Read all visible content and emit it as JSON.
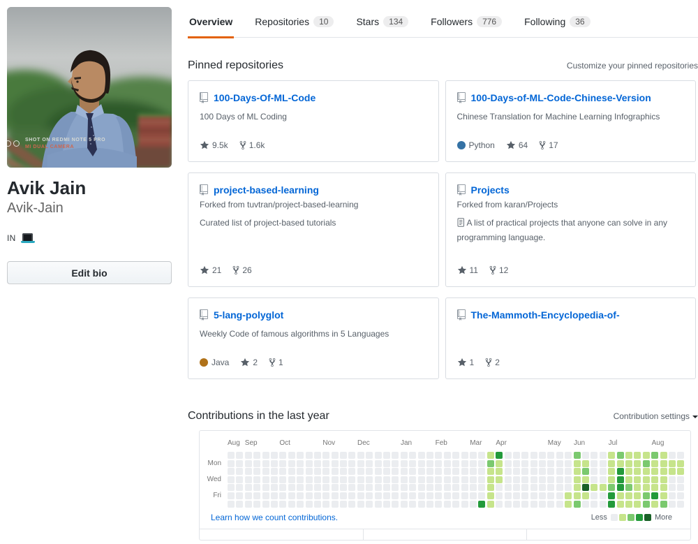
{
  "profile": {
    "name": "Avik Jain",
    "username": "Avik-Jain",
    "bio_text": "IN",
    "bio_icon": "laptop-icon",
    "edit_bio_label": "Edit bio",
    "avatar_watermark_line1": "SHOT ON REDMI NOTE 5 PRO",
    "avatar_watermark_line2": "MI DUAL CAMERA"
  },
  "tabs": [
    {
      "label": "Overview",
      "count": null,
      "active": true
    },
    {
      "label": "Repositories",
      "count": "10",
      "active": false
    },
    {
      "label": "Stars",
      "count": "134",
      "active": false
    },
    {
      "label": "Followers",
      "count": "776",
      "active": false
    },
    {
      "label": "Following",
      "count": "36",
      "active": false
    }
  ],
  "pinned": {
    "title": "Pinned repositories",
    "customize_label": "Customize your pinned repositories",
    "cards": [
      {
        "name": "100-Days-Of-ML-Code",
        "desc": "100 Days of ML Coding",
        "stars": "9.5k",
        "forks": "1.6k"
      },
      {
        "name": "100-Days-of-ML-Code-Chinese-Version",
        "desc": "Chinese Translation for Machine Learning Infographics",
        "language": "Python",
        "language_color": "#3572A5",
        "stars": "64",
        "forks": "17"
      },
      {
        "name": "project-based-learning",
        "forked_from": "Forked from tuvtran/project-based-learning",
        "desc": "Curated list of project-based tutorials",
        "stars": "21",
        "forks": "26"
      },
      {
        "name": "Projects",
        "forked_from": "Forked from karan/Projects",
        "desc": "A list of practical projects that anyone can solve in any programming language.",
        "desc_icon": "page-icon",
        "stars": "11",
        "forks": "12"
      },
      {
        "name": "5-lang-polyglot",
        "desc": "Weekly Code of famous algorithms in 5 Languages",
        "language": "Java",
        "language_color": "#b07219",
        "stars": "2",
        "forks": "1"
      },
      {
        "name": "The-Mammoth-Encyclopedia-of-",
        "stars": "1",
        "forks": "2"
      }
    ]
  },
  "contributions": {
    "title": "Contributions in the last year",
    "settings_label": "Contribution settings",
    "learn_link": "Learn how we count contributions.",
    "legend": {
      "less": "Less",
      "more": "More"
    },
    "chart_data": {
      "type": "heatmap",
      "description": "GitHub contribution calendar, 53 weeks x 7 days (rows Sun-Sat), levels 0-4",
      "palette": [
        "#ebedf0",
        "#c6e48b",
        "#7bc96f",
        "#239a3b",
        "#196127"
      ],
      "day_labels": [
        {
          "label": "Mon",
          "row": 1
        },
        {
          "label": "Wed",
          "row": 3
        },
        {
          "label": "Fri",
          "row": 5
        }
      ],
      "months": [
        {
          "label": "Aug",
          "col": 0
        },
        {
          "label": "Sep",
          "col": 2
        },
        {
          "label": "Oct",
          "col": 6
        },
        {
          "label": "Nov",
          "col": 11
        },
        {
          "label": "Dec",
          "col": 15
        },
        {
          "label": "Jan",
          "col": 20
        },
        {
          "label": "Feb",
          "col": 24
        },
        {
          "label": "Mar",
          "col": 28
        },
        {
          "label": "Apr",
          "col": 31
        },
        {
          "label": "May",
          "col": 37
        },
        {
          "label": "Jun",
          "col": 40
        },
        {
          "label": "Jul",
          "col": 44
        },
        {
          "label": "Aug",
          "col": 49
        }
      ],
      "weeks": [
        "0000000",
        "0000000",
        "0000000",
        "0000000",
        "0000000",
        "0000000",
        "0000000",
        "0000000",
        "0000000",
        "0000000",
        "0000000",
        "0000000",
        "0000000",
        "0000000",
        "0000000",
        "0000000",
        "0000000",
        "0000000",
        "0000000",
        "0000000",
        "0000000",
        "0000000",
        "0000000",
        "0000000",
        "0000000",
        "0000000",
        "0000000",
        "0000000",
        "0000000",
        "0000003",
        "1211111",
        "3111000",
        "0000000",
        "0000000",
        "0000000",
        "0000000",
        "0000000",
        "0000000",
        "0000000",
        "0000011",
        "2111112",
        "0121410",
        "0000100",
        "0000100",
        "1111233",
        "2133311",
        "1111211",
        "1111111",
        "1211122",
        "2111131",
        "1111112",
        "0110000",
        "0110000"
      ]
    }
  }
}
